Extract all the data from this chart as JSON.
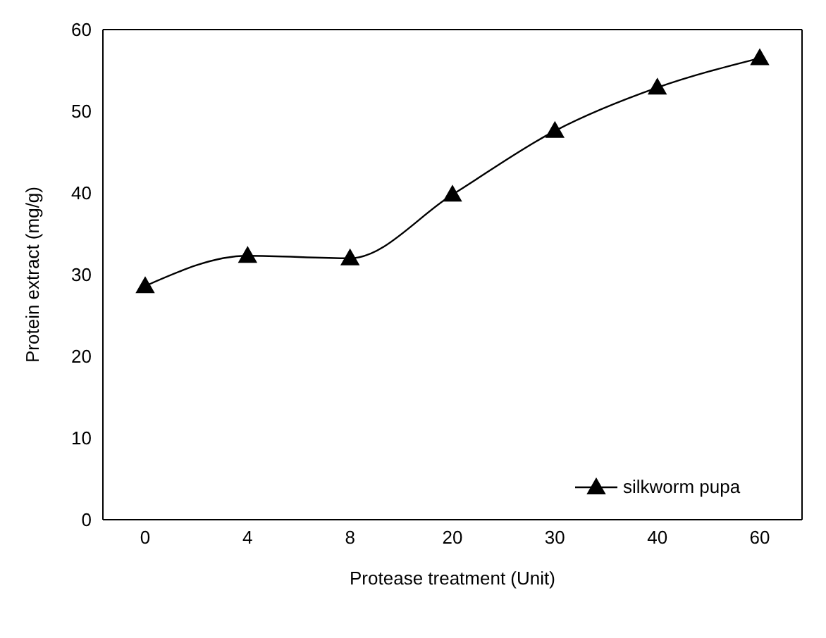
{
  "chart_data": {
    "type": "line",
    "xlabel": "Protease treatment (Unit)",
    "ylabel": "Protein extract (mg/g)",
    "categories": [
      "0",
      "4",
      "8",
      "20",
      "30",
      "40",
      "60"
    ],
    "series": [
      {
        "name": "silkworm pupa",
        "color": "#000000",
        "values": [
          28.6,
          32.3,
          32.0,
          39.8,
          47.6,
          52.9,
          56.5
        ]
      }
    ],
    "ylim": [
      0,
      60
    ],
    "yticks": [
      0,
      10,
      20,
      30,
      40,
      50,
      60
    ],
    "grid": false,
    "legend": "bottom right",
    "marker": "triangle",
    "line_style": "solid"
  }
}
